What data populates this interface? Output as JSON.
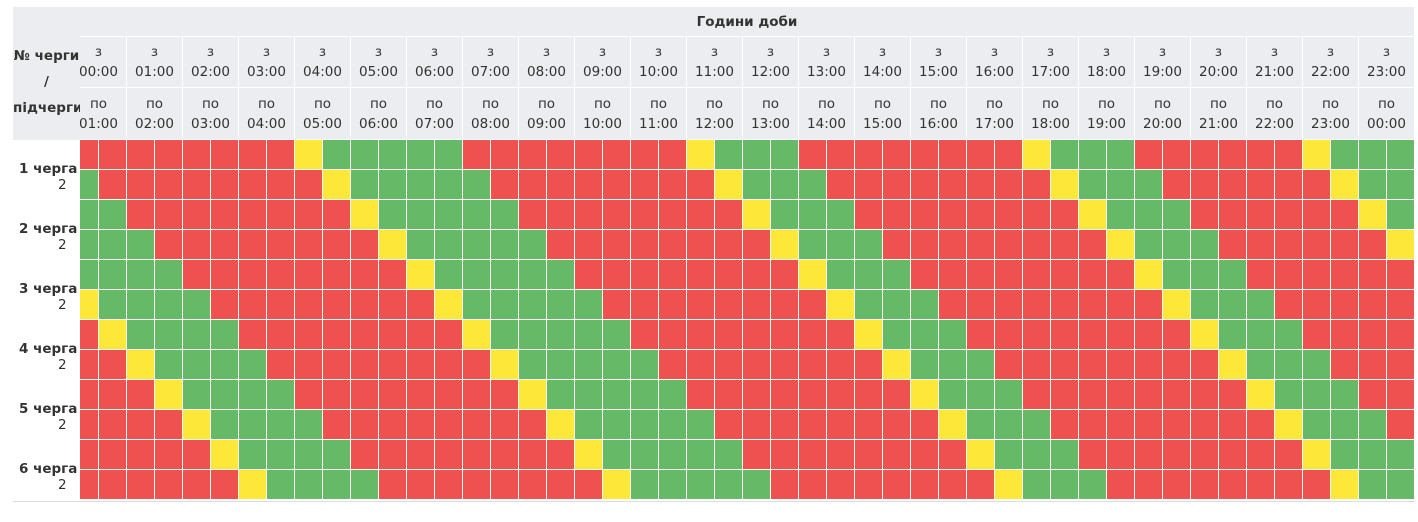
{
  "header": {
    "title": "Години доби",
    "corner": [
      "№ черги",
      "/",
      "підчерги"
    ],
    "from_prefix": "з",
    "to_prefix": "по"
  },
  "hours": [
    {
      "from": "00:00",
      "to": "01:00"
    },
    {
      "from": "01:00",
      "to": "02:00"
    },
    {
      "from": "02:00",
      "to": "03:00"
    },
    {
      "from": "03:00",
      "to": "04:00"
    },
    {
      "from": "04:00",
      "to": "05:00"
    },
    {
      "from": "05:00",
      "to": "06:00"
    },
    {
      "from": "06:00",
      "to": "07:00"
    },
    {
      "from": "07:00",
      "to": "08:00"
    },
    {
      "from": "08:00",
      "to": "09:00"
    },
    {
      "from": "09:00",
      "to": "10:00"
    },
    {
      "from": "10:00",
      "to": "11:00"
    },
    {
      "from": "11:00",
      "to": "12:00"
    },
    {
      "from": "12:00",
      "to": "13:00"
    },
    {
      "from": "13:00",
      "to": "14:00"
    },
    {
      "from": "14:00",
      "to": "15:00"
    },
    {
      "from": "15:00",
      "to": "16:00"
    },
    {
      "from": "16:00",
      "to": "17:00"
    },
    {
      "from": "17:00",
      "to": "18:00"
    },
    {
      "from": "18:00",
      "to": "19:00"
    },
    {
      "from": "19:00",
      "to": "20:00"
    },
    {
      "from": "20:00",
      "to": "21:00"
    },
    {
      "from": "21:00",
      "to": "22:00"
    },
    {
      "from": "22:00",
      "to": "23:00"
    },
    {
      "from": "23:00",
      "to": "00:00"
    }
  ],
  "queues": [
    {
      "label": "1 черга",
      "sub_label": "2"
    },
    {
      "label": "2 черга",
      "sub_label": "2"
    },
    {
      "label": "3 черга",
      "sub_label": "2"
    },
    {
      "label": "4 черга",
      "sub_label": "2"
    },
    {
      "label": "5 черга",
      "sub_label": "2"
    },
    {
      "label": "6 черга",
      "sub_label": "2"
    }
  ],
  "cell_colors": {
    "R": "#ef5050",
    "G": "#66b967",
    "Y": "#fde83a"
  },
  "rows": [
    {
      "cells": "RRRRRRRRYGGGGGRRRRRRRRYGGGRRRRRRRRYGGGRRRRRRYGGG"
    },
    {
      "cells": "GRRRRRRRRYGGGGGRRRRRRRRYGGGRRRRRRRRYGGGRRRRRRYGG"
    },
    {
      "cells": "GGRRRRRRRRYGGGGGRRRRRRRRYGGGRRRRRRRRYGGGRRRRRRYG"
    },
    {
      "cells": "GGGRRRRRRRRYGGGGGRRRRRRRRYGGGRRRRRRRRYGGGRRRRRRY"
    },
    {
      "cells": "GGGGRRRRRRRRYGGGGGRRRRRRRRYGGGRRRRRRRRYGGGRRRRRR"
    },
    {
      "cells": "YGGGGRRRRRRRRYGGGGGRRRRRRRRYGGGRRRRRRRRYGGGRRRRR"
    },
    {
      "cells": "RYGGGGRRRRRRRRYGGGGGRRRRRRRRYGGGRRRRRRRRYGGGRRRR"
    },
    {
      "cells": "RRYGGGGRRRRRRRRYGGGGGRRRRRRRRYGGGRRRRRRRRYGGGRRR"
    },
    {
      "cells": "RRRYGGGGRRRRRRRRYGGGGGRRRRRRRRYGGGRRRRRRRRYGGGRR"
    },
    {
      "cells": "RRRRYGGGGRRRRRRRRYGGGGGRRRRRRRRYGGGRRRRRRRRYGGGR"
    },
    {
      "cells": "RRRRRYGGGGRRRRRRRRYGGGGGRRRRRRRRYGGGRRRRRRRRYGGG"
    },
    {
      "cells": "RRRRRRYGGGGRRRRRRRRYGGGGGRRRRRRRRYGGGRRRRRRRRYGG"
    }
  ]
}
